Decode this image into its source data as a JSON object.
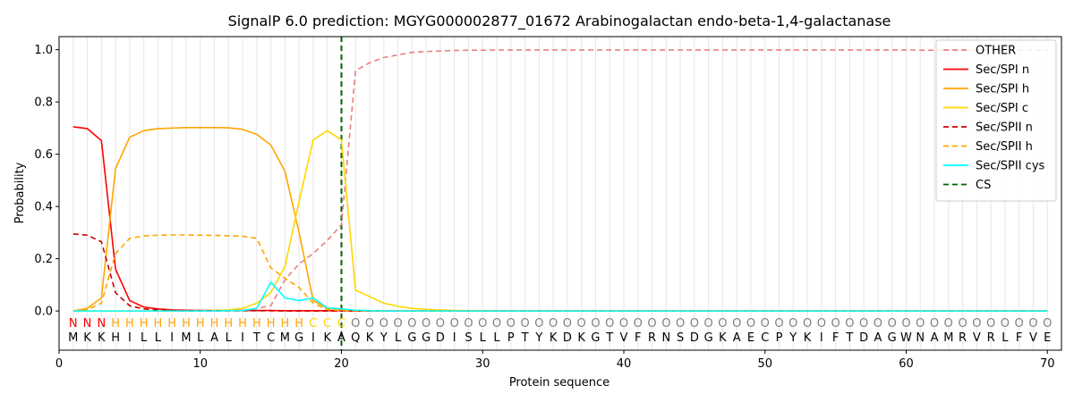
{
  "chart_data": {
    "type": "line",
    "title": "SignalP 6.0 prediction: MGYG000002877_01672 Arabinogalactan endo-beta-1,4-galactanase",
    "xlabel": "Protein sequence",
    "ylabel": "Probability",
    "xlim": [
      0,
      71
    ],
    "ylim": [
      -0.15,
      1.05
    ],
    "x_ticks": [
      0,
      10,
      20,
      30,
      40,
      50,
      60,
      70
    ],
    "y_ticks": [
      0.0,
      0.2,
      0.4,
      0.6,
      0.8,
      1.0
    ],
    "x_tick_labels": [
      "0",
      "10",
      "20",
      "30",
      "40",
      "50",
      "60",
      "70"
    ],
    "y_tick_labels": [
      "0.0",
      "0.2",
      "0.4",
      "0.6",
      "0.8",
      "1.0"
    ],
    "grid": "vertical lines at each residue",
    "legend_position": "top-right",
    "sequence": [
      "M",
      "K",
      "K",
      "H",
      "I",
      "L",
      "L",
      "I",
      "M",
      "L",
      "A",
      "L",
      "I",
      "T",
      "C",
      "M",
      "G",
      "I",
      "K",
      "A",
      "Q",
      "K",
      "Y",
      "L",
      "G",
      "G",
      "D",
      "I",
      "S",
      "L",
      "L",
      "P",
      "T",
      "Y",
      "K",
      "D",
      "K",
      "G",
      "T",
      "V",
      "F",
      "R",
      "N",
      "S",
      "D",
      "G",
      "K",
      "A",
      "E",
      "C",
      "P",
      "Y",
      "K",
      "I",
      "F",
      "T",
      "D",
      "A",
      "G",
      "W",
      "N",
      "A",
      "M",
      "R",
      "V",
      "R",
      "L",
      "F",
      "V",
      "E"
    ],
    "region_labels": [
      "N",
      "N",
      "N",
      "H",
      "H",
      "H",
      "H",
      "H",
      "H",
      "H",
      "H",
      "H",
      "H",
      "H",
      "H",
      "H",
      "H",
      "C",
      "C",
      "C",
      "O",
      "O",
      "O",
      "O",
      "O",
      "O",
      "O",
      "O",
      "O",
      "O",
      "O",
      "O",
      "O",
      "O",
      "O",
      "O",
      "O",
      "O",
      "O",
      "O",
      "O",
      "O",
      "O",
      "O",
      "O",
      "O",
      "O",
      "O",
      "O",
      "O",
      "O",
      "O",
      "O",
      "O",
      "O",
      "O",
      "O",
      "O",
      "O",
      "O",
      "O",
      "O",
      "O",
      "O",
      "O",
      "O",
      "O",
      "O",
      "O",
      "O"
    ],
    "region_colors": {
      "N": "#ff0000",
      "H": "#ffa500",
      "C": "#ffd700",
      "O": "#808080"
    },
    "cs_position": 20,
    "series": [
      {
        "name": "OTHER",
        "color": "#e88080",
        "dash": "dashed",
        "values": [
          0.0,
          0.0,
          0.0,
          0.0,
          0.0,
          0.0,
          0.0,
          0.0,
          0.0,
          0.0,
          0.0,
          0.0,
          0.0,
          0.01,
          0.02,
          0.12,
          0.18,
          0.22,
          0.27,
          0.33,
          0.92,
          0.95,
          0.97,
          0.98,
          0.99,
          0.993,
          0.995,
          0.997,
          0.998,
          0.998,
          0.999,
          0.999,
          0.999,
          0.999,
          0.999,
          0.999,
          0.999,
          0.999,
          0.999,
          0.999,
          0.999,
          0.999,
          0.999,
          0.999,
          0.999,
          0.999,
          0.999,
          0.999,
          0.999,
          0.999,
          0.999,
          0.999,
          0.999,
          0.999,
          0.999,
          0.999,
          0.999,
          0.999,
          0.999,
          0.999,
          0.998,
          0.998,
          0.998,
          0.998,
          0.998,
          0.998,
          0.998,
          0.998,
          0.998,
          0.998
        ]
      },
      {
        "name": "Sec/SPI n",
        "color": "#ff0000",
        "dash": "solid",
        "values": [
          0.705,
          0.698,
          0.652,
          0.16,
          0.04,
          0.015,
          0.008,
          0.004,
          0.003,
          0.002,
          0.002,
          0.002,
          0.002,
          0.002,
          0.002,
          0.001,
          0.001,
          0.001,
          0.001,
          0.001,
          0.0,
          0.0,
          0.0,
          0.0,
          0.0,
          0.0,
          0.0,
          0.0,
          0.0,
          0.0,
          0.0,
          0.0,
          0.0,
          0.0,
          0.0,
          0.0,
          0.0,
          0.0,
          0.0,
          0.0,
          0.0,
          0.0,
          0.0,
          0.0,
          0.0,
          0.0,
          0.0,
          0.0,
          0.0,
          0.0,
          0.0,
          0.0,
          0.0,
          0.0,
          0.0,
          0.0,
          0.0,
          0.0,
          0.0,
          0.0,
          0.0,
          0.0,
          0.0,
          0.0,
          0.0,
          0.0,
          0.0,
          0.0,
          0.0,
          0.0
        ]
      },
      {
        "name": "Sec/SPI h",
        "color": "#ffa500",
        "dash": "solid",
        "values": [
          0.0,
          0.01,
          0.05,
          0.545,
          0.665,
          0.69,
          0.698,
          0.7,
          0.702,
          0.702,
          0.702,
          0.701,
          0.695,
          0.676,
          0.635,
          0.535,
          0.3,
          0.04,
          0.01,
          0.005,
          0.002,
          0.001,
          0.0,
          0.0,
          0.0,
          0.0,
          0.0,
          0.0,
          0.0,
          0.0,
          0.0,
          0.0,
          0.0,
          0.0,
          0.0,
          0.0,
          0.0,
          0.0,
          0.0,
          0.0,
          0.0,
          0.0,
          0.0,
          0.0,
          0.0,
          0.0,
          0.0,
          0.0,
          0.0,
          0.0,
          0.0,
          0.0,
          0.0,
          0.0,
          0.0,
          0.0,
          0.0,
          0.0,
          0.0,
          0.0,
          0.0,
          0.0,
          0.0,
          0.0,
          0.0,
          0.0,
          0.0,
          0.0,
          0.0,
          0.0
        ]
      },
      {
        "name": "Sec/SPI c",
        "color": "#ffd700",
        "dash": "solid",
        "values": [
          0.0,
          0.0,
          0.0,
          0.0,
          0.0,
          0.0,
          0.0,
          0.0,
          0.0,
          0.001,
          0.002,
          0.004,
          0.01,
          0.03,
          0.07,
          0.17,
          0.42,
          0.655,
          0.69,
          0.655,
          0.08,
          0.055,
          0.03,
          0.018,
          0.01,
          0.006,
          0.004,
          0.002,
          0.001,
          0.001,
          0.0,
          0.0,
          0.0,
          0.0,
          0.0,
          0.0,
          0.0,
          0.0,
          0.0,
          0.0,
          0.0,
          0.0,
          0.0,
          0.0,
          0.0,
          0.0,
          0.0,
          0.0,
          0.0,
          0.0,
          0.0,
          0.0,
          0.0,
          0.0,
          0.0,
          0.0,
          0.0,
          0.0,
          0.0,
          0.0,
          0.0,
          0.0,
          0.0,
          0.0,
          0.0,
          0.0,
          0.0,
          0.0,
          0.0,
          0.0
        ]
      },
      {
        "name": "Sec/SPII n",
        "color": "#cc0000",
        "dash": "dashed",
        "values": [
          0.295,
          0.29,
          0.265,
          0.07,
          0.02,
          0.008,
          0.004,
          0.002,
          0.001,
          0.001,
          0.001,
          0.001,
          0.001,
          0.001,
          0.001,
          0.0,
          0.0,
          0.0,
          0.0,
          0.0,
          0.0,
          0.0,
          0.0,
          0.0,
          0.0,
          0.0,
          0.0,
          0.0,
          0.0,
          0.0,
          0.0,
          0.0,
          0.0,
          0.0,
          0.0,
          0.0,
          0.0,
          0.0,
          0.0,
          0.0,
          0.0,
          0.0,
          0.0,
          0.0,
          0.0,
          0.0,
          0.0,
          0.0,
          0.0,
          0.0,
          0.0,
          0.0,
          0.0,
          0.0,
          0.0,
          0.0,
          0.0,
          0.0,
          0.0,
          0.0,
          0.0,
          0.0,
          0.0,
          0.0,
          0.0,
          0.0,
          0.0,
          0.0,
          0.0,
          0.0
        ]
      },
      {
        "name": "Sec/SPII h",
        "color": "#ffa500",
        "dash": "dashed",
        "values": [
          0.0,
          0.005,
          0.03,
          0.22,
          0.278,
          0.287,
          0.29,
          0.291,
          0.291,
          0.29,
          0.289,
          0.288,
          0.286,
          0.278,
          0.165,
          0.125,
          0.09,
          0.03,
          0.005,
          0.002,
          0.001,
          0.0,
          0.0,
          0.0,
          0.0,
          0.0,
          0.0,
          0.0,
          0.0,
          0.0,
          0.0,
          0.0,
          0.0,
          0.0,
          0.0,
          0.0,
          0.0,
          0.0,
          0.0,
          0.0,
          0.0,
          0.0,
          0.0,
          0.0,
          0.0,
          0.0,
          0.0,
          0.0,
          0.0,
          0.0,
          0.0,
          0.0,
          0.0,
          0.0,
          0.0,
          0.0,
          0.0,
          0.0,
          0.0,
          0.0,
          0.0,
          0.0,
          0.0,
          0.0,
          0.0,
          0.0,
          0.0,
          0.0,
          0.0,
          0.0
        ]
      },
      {
        "name": "Sec/SPII cys",
        "color": "#00ffff",
        "dash": "solid",
        "values": [
          0.0,
          0.0,
          0.0,
          0.0,
          0.0,
          0.0,
          0.0,
          0.0,
          0.0,
          0.0,
          0.0,
          0.001,
          0.002,
          0.01,
          0.11,
          0.05,
          0.04,
          0.05,
          0.012,
          0.008,
          0.003,
          0.001,
          0.0,
          0.0,
          0.0,
          0.0,
          0.0,
          0.0,
          0.0,
          0.0,
          0.0,
          0.0,
          0.0,
          0.0,
          0.0,
          0.0,
          0.0,
          0.0,
          0.0,
          0.0,
          0.0,
          0.0,
          0.0,
          0.0,
          0.0,
          0.0,
          0.0,
          0.0,
          0.0,
          0.0,
          0.0,
          0.0,
          0.0,
          0.0,
          0.0,
          0.0,
          0.0,
          0.0,
          0.0,
          0.0,
          0.0,
          0.0,
          0.0,
          0.0,
          0.0,
          0.0,
          0.0,
          0.0,
          0.0,
          0.0
        ]
      }
    ],
    "cs_legend": {
      "name": "CS",
      "color": "#006400",
      "dash": "dashed"
    }
  }
}
